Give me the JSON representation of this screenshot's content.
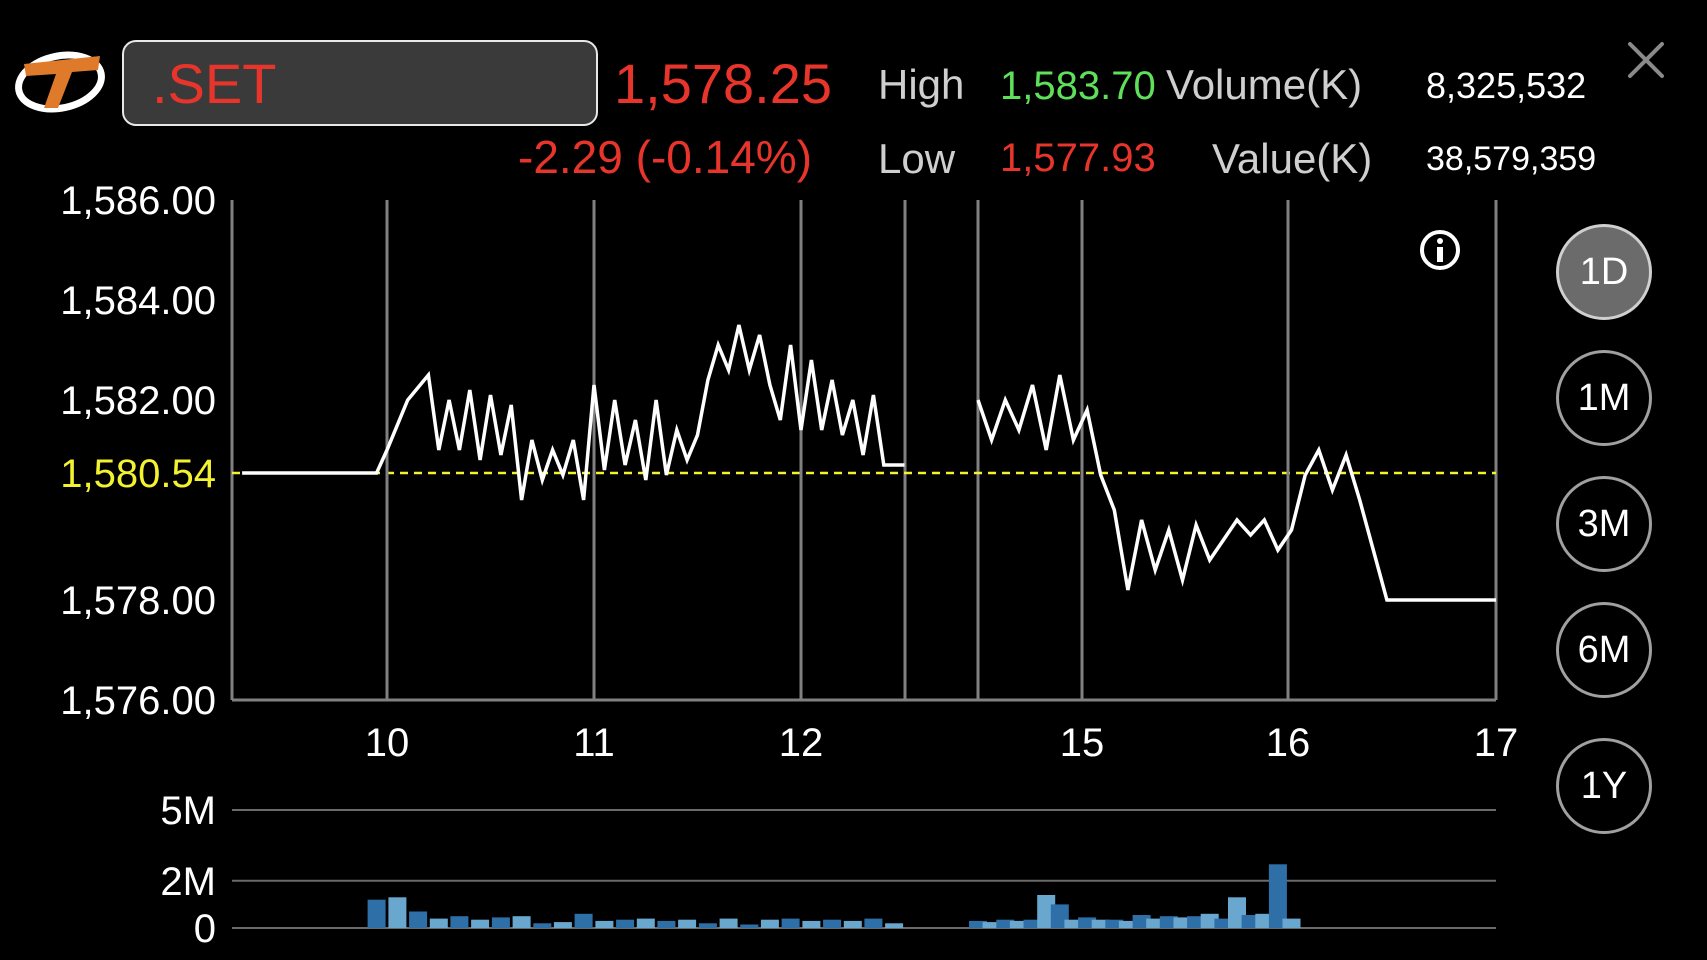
{
  "header": {
    "symbol": ".SET",
    "last_price": "1,578.25",
    "change": "-2.29 (-0.14%)",
    "high_label": "High",
    "high_value": "1,583.70",
    "low_label": "Low",
    "low_value": "1,577.93",
    "volume_label": "Volume(K)",
    "volume_value": "8,325,532",
    "value_label": "Value(K)",
    "value_value": "38,579,359"
  },
  "ranges": [
    {
      "label": "1D",
      "active": true
    },
    {
      "label": "1M",
      "active": false
    },
    {
      "label": "3M",
      "active": false
    },
    {
      "label": "6M",
      "active": false
    },
    {
      "label": "1Y",
      "active": false
    }
  ],
  "icons": {
    "logo": "brand-logo-icon",
    "close": "close-icon",
    "info": "info-icon"
  },
  "colors": {
    "down": "#e8352b",
    "up": "#5fe05a",
    "reference": "#f2f230",
    "line": "#ffffff",
    "volume": "#2e6fa8",
    "volume_alt": "#6aa7cf"
  },
  "chart_data": [
    {
      "type": "line",
      "ylim": [
        1576,
        1586
      ],
      "y_ticks": [
        "1,586.00",
        "1,584.00",
        "1,582.00",
        "1,578.00",
        "1,576.00"
      ],
      "y_tick_values": [
        1586,
        1584,
        1582,
        1578,
        1576
      ],
      "reference_label": "1,580.54",
      "reference_value": 1580.54,
      "x_ticks": [
        "10",
        "11",
        "12",
        "15",
        "16",
        "17"
      ],
      "series": [
        {
          "segments": [
            {
              "x": [
                9.3,
                9.95,
                10.0,
                10.1,
                10.2,
                10.25,
                10.3,
                10.35,
                10.4,
                10.45,
                10.5,
                10.55,
                10.6,
                10.65,
                10.7,
                10.75,
                10.8,
                10.85,
                10.9,
                10.95,
                11.0,
                11.05,
                11.1,
                11.15,
                11.2,
                11.25,
                11.3,
                11.35,
                11.4,
                11.45,
                11.5,
                11.55,
                11.6,
                11.65,
                11.7,
                11.75,
                11.8,
                11.85,
                11.9,
                11.95,
                12.0,
                12.05,
                12.1,
                12.15,
                12.2,
                12.25,
                12.3,
                12.35,
                12.4,
                12.45,
                12.5
              ],
              "y": [
                1580.54,
                1580.54,
                1581.0,
                1582.0,
                1582.5,
                1581.0,
                1582.0,
                1581.0,
                1582.2,
                1580.8,
                1582.1,
                1580.9,
                1581.9,
                1580.0,
                1581.2,
                1580.4,
                1581.0,
                1580.5,
                1581.2,
                1580.0,
                1582.3,
                1580.6,
                1582.0,
                1580.7,
                1581.6,
                1580.4,
                1582.0,
                1580.5,
                1581.4,
                1580.8,
                1581.3,
                1582.4,
                1583.1,
                1582.6,
                1583.5,
                1582.6,
                1583.3,
                1582.3,
                1581.6,
                1583.1,
                1581.4,
                1582.8,
                1581.4,
                1582.4,
                1581.3,
                1582.0,
                1580.9,
                1582.1,
                1580.7,
                1580.7,
                1580.7
              ],
              "name": ""
            },
            {
              "x": [
                13.2,
                13.3,
                13.4,
                13.5,
                13.6,
                13.7,
                13.8,
                13.9,
                14.0,
                14.1,
                14.2,
                14.3,
                14.4,
                14.5,
                14.6,
                14.7,
                14.8,
                14.9,
                15.0,
                15.1,
                15.2,
                15.3,
                15.4,
                15.5,
                15.6,
                15.7,
                15.8,
                15.9,
                16.0,
                16.1,
                16.2,
                16.3,
                16.4,
                16.5,
                16.6,
                16.7,
                16.8,
                16.9,
                17.0
              ],
              "y": [
                1582.0,
                1581.2,
                1582.0,
                1581.4,
                1582.3,
                1581.0,
                1582.5,
                1581.2,
                1581.8,
                1580.5,
                1579.8,
                1578.2,
                1579.6,
                1578.6,
                1579.4,
                1578.4,
                1579.5,
                1578.8,
                1579.2,
                1579.6,
                1579.3,
                1579.6,
                1579.0,
                1579.4,
                1580.5,
                1581.0,
                1580.2,
                1580.9,
                1580.0,
                1579.0,
                1578.0,
                1578.0,
                1578.0,
                1578.0,
                1578.0,
                1578.0,
                1578.0,
                1578.0,
                1578.0
              ],
              "name": ""
            }
          ]
        }
      ]
    },
    {
      "type": "bar",
      "ylim": [
        0,
        5
      ],
      "y_ticks": [
        "5M",
        "2M",
        "0"
      ],
      "y_tick_values": [
        5,
        2,
        0
      ],
      "x": [
        9.95,
        10.05,
        10.15,
        10.25,
        10.35,
        10.45,
        10.55,
        10.65,
        10.75,
        10.85,
        10.95,
        11.05,
        11.15,
        11.25,
        11.35,
        11.45,
        11.55,
        11.65,
        11.75,
        11.85,
        11.95,
        12.05,
        12.15,
        12.25,
        12.35,
        12.45,
        13.2,
        13.3,
        13.4,
        13.5,
        13.6,
        13.7,
        13.8,
        13.9,
        14.0,
        14.1,
        14.2,
        14.3,
        14.4,
        14.5,
        14.6,
        14.7,
        14.8,
        14.9,
        15.0,
        15.1,
        15.2,
        15.3,
        15.4,
        15.5
      ],
      "values": [
        1.2,
        1.3,
        0.7,
        0.4,
        0.5,
        0.35,
        0.45,
        0.5,
        0.2,
        0.25,
        0.6,
        0.3,
        0.35,
        0.4,
        0.3,
        0.35,
        0.2,
        0.4,
        0.15,
        0.35,
        0.4,
        0.3,
        0.35,
        0.3,
        0.4,
        0.2,
        0.3,
        0.25,
        0.35,
        0.3,
        0.35,
        1.4,
        1.0,
        0.35,
        0.45,
        0.35,
        0.35,
        0.3,
        0.55,
        0.4,
        0.5,
        0.45,
        0.5,
        0.6,
        0.4,
        1.3,
        0.55,
        0.6,
        2.7,
        0.4
      ]
    }
  ]
}
